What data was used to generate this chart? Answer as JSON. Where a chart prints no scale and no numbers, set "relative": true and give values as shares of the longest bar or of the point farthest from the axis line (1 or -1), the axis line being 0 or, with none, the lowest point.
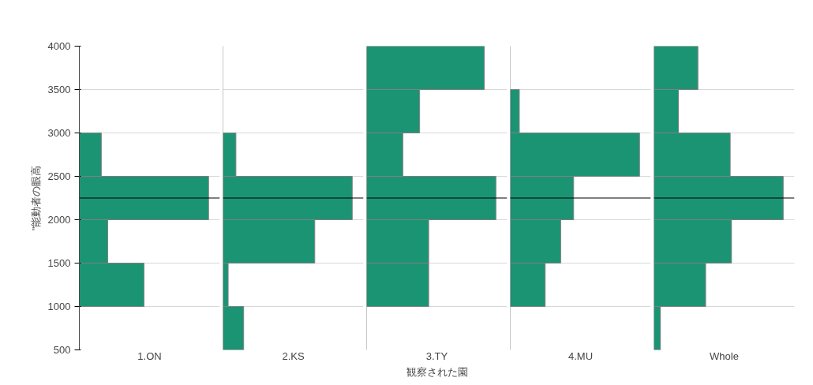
{
  "chart_data": [
    {
      "type": "bar",
      "orientation": "horizontal",
      "relative": true,
      "tick_labels": "y",
      "xlabel": "1.ON",
      "ylabel": "\"能動者の眼高",
      "color": "#1b9474",
      "x": [
        750,
        1250,
        1750,
        2250,
        2750,
        3250,
        3750
      ],
      "values": [
        0,
        0.5,
        0.22,
        1,
        0.17,
        0,
        0
      ],
      "ylim": [
        500,
        4000
      ],
      "yticks": [
        500,
        1000,
        1500,
        2000,
        2500,
        3000,
        3500,
        4000
      ],
      "grid": "y",
      "ref_lines": [
        {
          "axis": "y",
          "value": 2250,
          "color": "#000000"
        }
      ]
    },
    {
      "type": "bar",
      "orientation": "horizontal",
      "relative": true,
      "tick_labels": false,
      "xlabel": "2.KS",
      "color": "#1b9474",
      "x": [
        750,
        1250,
        1750,
        2250,
        2750,
        3250,
        3750
      ],
      "values": [
        0.16,
        0.04,
        0.71,
        1,
        0.1,
        0,
        0
      ],
      "ylim": [
        500,
        4000
      ],
      "yticks": [
        500,
        1000,
        1500,
        2000,
        2500,
        3000,
        3500,
        4000
      ],
      "grid": "y",
      "ref_lines": [
        {
          "axis": "y",
          "value": 2250,
          "color": "#000000"
        }
      ]
    },
    {
      "type": "bar",
      "orientation": "horizontal",
      "relative": true,
      "tick_labels": false,
      "xlabel": "3.TY",
      "color": "#1b9474",
      "x": [
        750,
        1250,
        1750,
        2250,
        2750,
        3250,
        3750
      ],
      "values": [
        0,
        0.48,
        0.48,
        1,
        0.28,
        0.41,
        0.91
      ],
      "ylim": [
        500,
        4000
      ],
      "yticks": [
        500,
        1000,
        1500,
        2000,
        2500,
        3000,
        3500,
        4000
      ],
      "grid": "y",
      "ref_lines": [
        {
          "axis": "y",
          "value": 2250,
          "color": "#000000"
        }
      ],
      "annotations": [
        "観察された園"
      ]
    },
    {
      "type": "bar",
      "orientation": "horizontal",
      "relative": true,
      "tick_labels": false,
      "xlabel": "4.MU",
      "color": "#1b9474",
      "x": [
        750,
        1250,
        1750,
        2250,
        2750,
        3250,
        3750
      ],
      "values": [
        0,
        0.27,
        0.39,
        0.49,
        1,
        0.07,
        0
      ],
      "ylim": [
        500,
        4000
      ],
      "yticks": [
        500,
        1000,
        1500,
        2000,
        2500,
        3000,
        3500,
        4000
      ],
      "grid": "y",
      "ref_lines": [
        {
          "axis": "y",
          "value": 2250,
          "color": "#000000"
        }
      ]
    },
    {
      "type": "bar",
      "orientation": "horizontal",
      "relative": true,
      "tick_labels": false,
      "xlabel": "Whole",
      "color": "#1b9474",
      "x": [
        750,
        1250,
        1750,
        2250,
        2750,
        3250,
        3750
      ],
      "values": [
        0.05,
        0.4,
        0.6,
        1,
        0.59,
        0.19,
        0.34
      ],
      "ylim": [
        500,
        4000
      ],
      "yticks": [
        500,
        1000,
        1500,
        2000,
        2500,
        3000,
        3500,
        4000
      ],
      "grid": "y",
      "ref_lines": [
        {
          "axis": "y",
          "value": 2250,
          "color": "#000000"
        }
      ]
    }
  ]
}
